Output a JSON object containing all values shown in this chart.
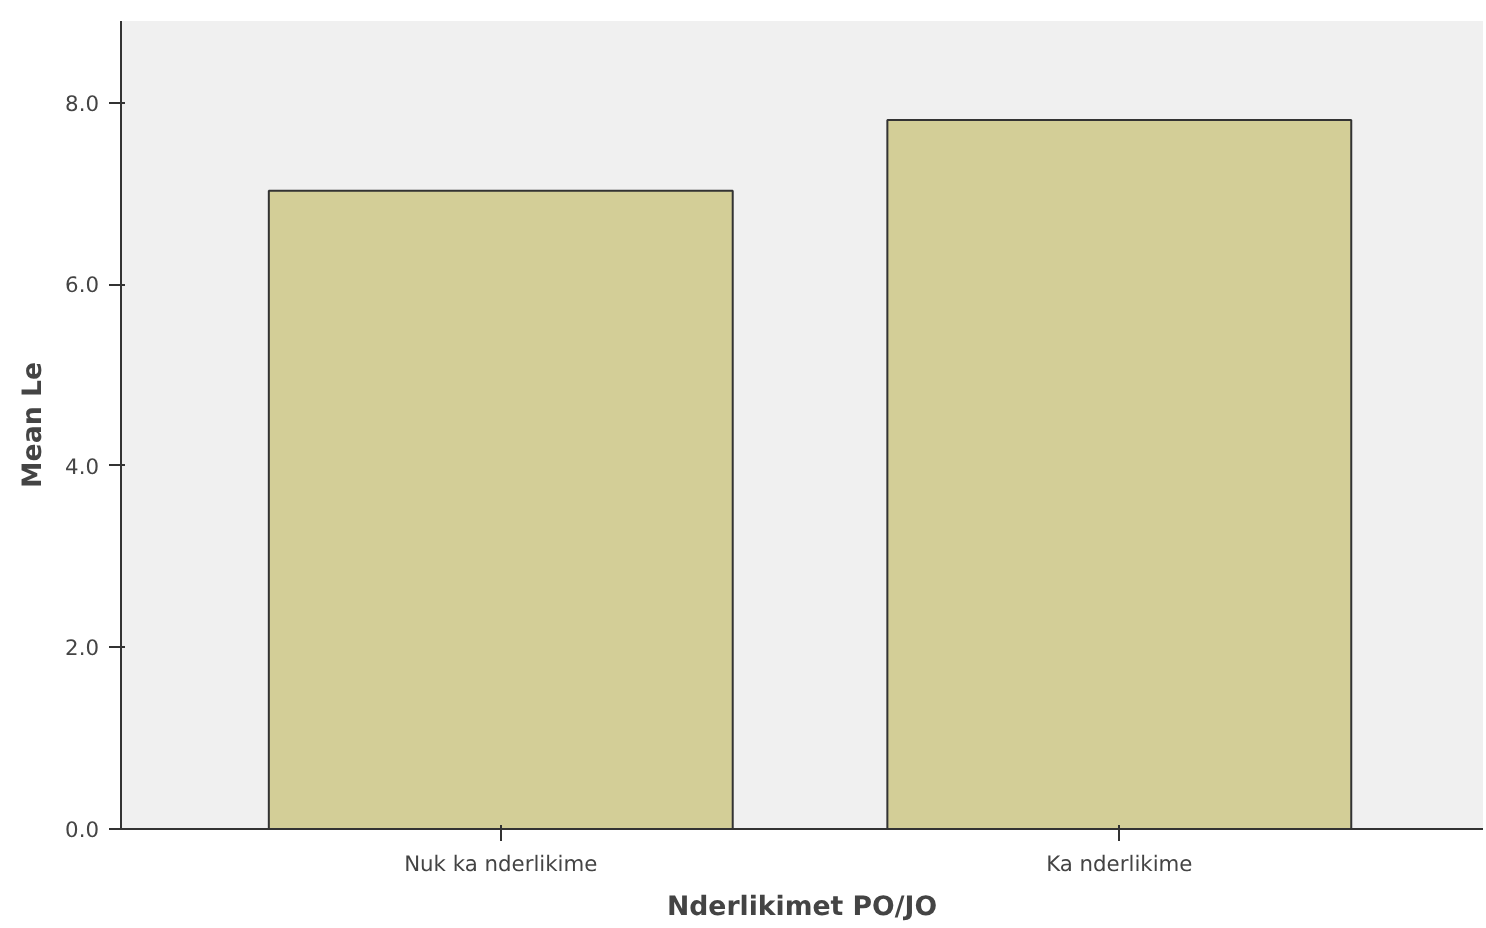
{
  "chart_data": {
    "type": "bar",
    "xlabel": "Nderlikimet PO/JO",
    "ylabel": "Mean Le",
    "categories": [
      "Nuk ka nderlikime",
      "Ka nderlikime"
    ],
    "values": [
      7.03,
      7.81
    ],
    "color": "#d3ce97",
    "ylim": [
      0,
      8.9
    ],
    "yticks": [
      {
        "value": 0,
        "label": "0.0"
      },
      {
        "value": 2,
        "label": "2.0"
      },
      {
        "value": 4,
        "label": "4.0"
      },
      {
        "value": 6,
        "label": "6.0"
      },
      {
        "value": 8,
        "label": "8.0"
      }
    ],
    "grid": false
  }
}
